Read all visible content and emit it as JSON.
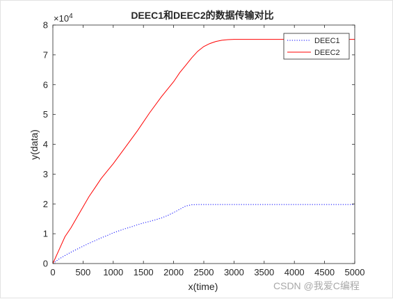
{
  "chart_data": {
    "type": "line",
    "title": "DEEC1和DEEC2的数据传输对比",
    "xlabel": "x(time)",
    "ylabel": "y(data)",
    "y_exponent_label": "×10",
    "y_exponent_power": "4",
    "xlim": [
      0,
      5000
    ],
    "ylim": [
      0,
      80000
    ],
    "xticks": [
      0,
      500,
      1000,
      1500,
      2000,
      2500,
      3000,
      3500,
      4000,
      4500,
      5000
    ],
    "yticks": [
      0,
      10000,
      20000,
      30000,
      40000,
      50000,
      60000,
      70000,
      80000
    ],
    "ytick_labels": [
      "0",
      "1",
      "2",
      "3",
      "4",
      "5",
      "6",
      "7",
      "8"
    ],
    "grid": false,
    "legend_position": "top-right",
    "series": [
      {
        "name": "DEEC1",
        "color": "#0000ff",
        "style": "dotted",
        "x": [
          0,
          100,
          200,
          300,
          400,
          500,
          600,
          700,
          800,
          900,
          1000,
          1100,
          1200,
          1300,
          1400,
          1500,
          1600,
          1700,
          1800,
          1900,
          2000,
          2100,
          2200,
          2300,
          2400,
          2500,
          2600,
          2800,
          3000,
          3500,
          4000,
          4500,
          5000
        ],
        "y": [
          0,
          1500,
          2700,
          3800,
          4800,
          5800,
          6800,
          7700,
          8600,
          9400,
          10300,
          11000,
          11700,
          12300,
          13000,
          13600,
          14100,
          14700,
          15300,
          16100,
          17100,
          18200,
          19300,
          19700,
          19800,
          19800,
          19800,
          19800,
          19800,
          19800,
          19800,
          19800,
          19800
        ]
      },
      {
        "name": "DEEC2",
        "color": "#ff0000",
        "style": "solid",
        "x": [
          0,
          100,
          200,
          300,
          400,
          500,
          600,
          700,
          800,
          900,
          1000,
          1200,
          1400,
          1600,
          1800,
          2000,
          2100,
          2200,
          2300,
          2400,
          2500,
          2600,
          2700,
          2800,
          2900,
          3000,
          3200,
          3500,
          4000,
          4500,
          5000
        ],
        "y": [
          0,
          4500,
          9000,
          12000,
          15500,
          19000,
          22500,
          25500,
          28500,
          31000,
          33500,
          39000,
          44500,
          50500,
          56000,
          61000,
          64000,
          66500,
          69000,
          71200,
          72800,
          73800,
          74500,
          74900,
          75100,
          75200,
          75200,
          75200,
          75200,
          75200,
          75200
        ]
      }
    ]
  },
  "watermark": "CSDN @我爱C编程",
  "colors": {
    "axis": "#262626",
    "background": "#ffffff"
  }
}
